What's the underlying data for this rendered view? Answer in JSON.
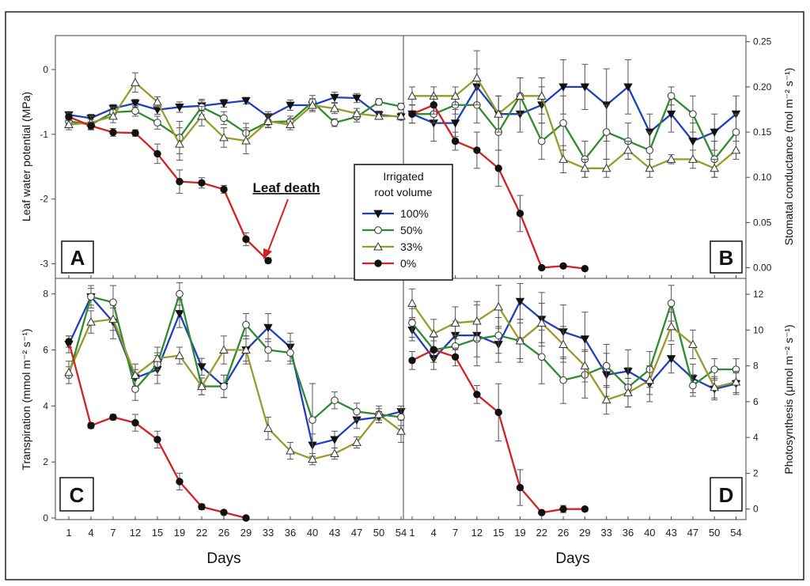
{
  "figure": {
    "x_label": "Days",
    "legend": {
      "title_line1": "Irrigated",
      "title_line2": "root volume",
      "items": [
        "100%",
        "50%",
        "33%",
        "0%"
      ]
    },
    "annotation": "Leaf death",
    "series_colors": {
      "100%": "#1f3fbf",
      "50%": "#2e8b2e",
      "33%": "#9a9a2a",
      "0%": "#d42020"
    }
  },
  "chart_data": [
    {
      "panel": "A",
      "type": "line",
      "ylabel": "Leaf water potential (MPa)",
      "y_axis_side": "left",
      "ylim": [
        -3.2,
        0.5
      ],
      "yticks": [
        0,
        -1,
        -2,
        -3
      ],
      "x_tick_labels": [
        "1",
        "4",
        "7",
        "12",
        "15",
        "19",
        "22",
        "26",
        "29",
        "33",
        "36",
        "40",
        "43",
        "47",
        "50",
        "54"
      ],
      "series": [
        {
          "name": "100%",
          "values": [
            -0.7,
            -0.75,
            -0.6,
            -0.52,
            -0.62,
            -0.58,
            -0.56,
            -0.52,
            -0.48,
            -0.73,
            -0.55,
            -0.55,
            -0.43,
            -0.44,
            -0.7,
            -0.73
          ],
          "errors": [
            0.05,
            0.06,
            0.06,
            0.06,
            0.07,
            0.08,
            0.08,
            0.06,
            0.05,
            0.08,
            0.08,
            0.08,
            0.08,
            0.07,
            0.06,
            0.05
          ]
        },
        {
          "name": "50%",
          "values": [
            -0.8,
            -0.85,
            -0.66,
            -0.64,
            -0.82,
            -1.05,
            -0.58,
            -0.75,
            -0.98,
            -0.81,
            -0.8,
            -0.5,
            -0.82,
            -0.73,
            -0.5,
            -0.57
          ],
          "errors": [
            0.05,
            0.08,
            0.08,
            0.08,
            0.1,
            0.25,
            0.12,
            0.1,
            0.15,
            0.08,
            0.08,
            0.1,
            0.06,
            0.08,
            0.05,
            0.05
          ]
        },
        {
          "name": "33%",
          "values": [
            -0.85,
            -0.82,
            -0.72,
            -0.2,
            -0.5,
            -1.15,
            -0.72,
            -1.05,
            -1.1,
            -0.8,
            -0.85,
            -0.55,
            -0.6,
            -0.68,
            -0.72,
            -0.72
          ],
          "errors": [
            0.08,
            0.1,
            0.1,
            0.15,
            0.08,
            0.25,
            0.15,
            0.15,
            0.2,
            0.1,
            0.08,
            0.1,
            0.08,
            0.08,
            0.05,
            0.05
          ]
        },
        {
          "name": "0%",
          "values": [
            -0.73,
            -0.87,
            -0.97,
            -0.98,
            -1.3,
            -1.73,
            -1.75,
            -1.85,
            -2.62,
            -2.95
          ],
          "errors": [
            0.06,
            0.06,
            0.06,
            0.05,
            0.15,
            0.18,
            0.08,
            0.06,
            0.1,
            0.04
          ]
        }
      ]
    },
    {
      "panel": "B",
      "type": "line",
      "ylabel": "Stomatal conductance (mol m⁻² s⁻¹)",
      "y_axis_side": "right",
      "ylim": [
        -0.01,
        0.255
      ],
      "yticks": [
        0.25,
        0.2,
        0.15,
        0.1,
        0.05,
        0.0
      ],
      "ytick_labels": [
        "0.25",
        "0.20",
        "0.15",
        "0.10",
        "0.05",
        "0.00"
      ],
      "x_tick_labels": [
        "1",
        "4",
        "7",
        "12",
        "15",
        "19",
        "22",
        "26",
        "29",
        "33",
        "36",
        "40",
        "43",
        "47",
        "50",
        "54"
      ],
      "series": [
        {
          "name": "100%",
          "values": [
            0.17,
            0.16,
            0.16,
            0.2,
            0.17,
            0.17,
            0.18,
            0.2,
            0.2,
            0.18,
            0.2,
            0.15,
            0.17,
            0.14,
            0.15,
            0.17
          ],
          "errors": [
            0.01,
            0.02,
            0.015,
            0.02,
            0.02,
            0.02,
            0.02,
            0.03,
            0.025,
            0.04,
            0.03,
            0.02,
            0.02,
            0.02,
            0.02,
            0.02
          ]
        },
        {
          "name": "50%",
          "values": [
            0.17,
            0.17,
            0.18,
            0.18,
            0.15,
            0.19,
            0.14,
            0.16,
            0.12,
            0.15,
            0.14,
            0.13,
            0.19,
            0.17,
            0.12,
            0.15
          ],
          "errors": [
            0.01,
            0.01,
            0.01,
            0.02,
            0.02,
            0.02,
            0.02,
            0.03,
            0.02,
            0.03,
            0.02,
            0.02,
            0.01,
            0.02,
            0.02,
            0.02
          ]
        },
        {
          "name": "33%",
          "values": [
            0.19,
            0.19,
            0.19,
            0.21,
            0.17,
            0.19,
            0.19,
            0.12,
            0.11,
            0.11,
            0.13,
            0.11,
            0.12,
            0.12,
            0.11,
            0.13
          ],
          "errors": [
            0.01,
            0.01,
            0.01,
            0.03,
            0.02,
            0.02,
            0.02,
            0.015,
            0.01,
            0.01,
            0.01,
            0.01,
            0.005,
            0.01,
            0.01,
            0.01
          ]
        },
        {
          "name": "0%",
          "values": [
            0.17,
            0.18,
            0.14,
            0.13,
            0.11,
            0.06,
            0.0,
            0.002,
            -0.001
          ],
          "errors": [
            0.01,
            0.01,
            0.01,
            0.02,
            0.02,
            0.02,
            0.002,
            0.002,
            0.001
          ]
        }
      ]
    },
    {
      "panel": "C",
      "type": "line",
      "ylabel": "Transpiration (mmol m⁻² s⁻¹)",
      "y_axis_side": "left",
      "ylim": [
        0,
        8.5
      ],
      "yticks": [
        0,
        2,
        4,
        6,
        8
      ],
      "x_tick_labels": [
        "1",
        "4",
        "7",
        "12",
        "15",
        "19",
        "22",
        "26",
        "29",
        "33",
        "36",
        "40",
        "43",
        "47",
        "50",
        "54"
      ],
      "series": [
        {
          "name": "100%",
          "values": [
            6.2,
            7.9,
            7.0,
            5.0,
            5.3,
            7.3,
            5.4,
            4.7,
            6.0,
            6.8,
            6.1,
            2.6,
            2.8,
            3.5,
            3.6,
            3.8
          ],
          "errors": [
            0.3,
            0.4,
            0.6,
            0.3,
            0.5,
            0.5,
            0.3,
            0.4,
            0.5,
            0.5,
            0.5,
            0.4,
            0.3,
            0.3,
            0.2,
            0.2
          ]
        },
        {
          "name": "50%",
          "values": [
            5.1,
            7.9,
            7.7,
            4.6,
            5.5,
            8.0,
            4.7,
            4.7,
            6.9,
            6.0,
            5.9,
            3.5,
            4.2,
            3.8,
            3.7,
            3.6
          ],
          "errors": [
            0.3,
            0.3,
            0.6,
            0.4,
            0.4,
            0.4,
            0.3,
            0.4,
            0.4,
            0.4,
            0.4,
            1.3,
            0.3,
            0.3,
            0.3,
            0.3
          ]
        },
        {
          "name": "33%",
          "values": [
            5.2,
            7.0,
            7.1,
            5.1,
            5.7,
            5.8,
            4.7,
            6.0,
            6.0,
            3.2,
            2.4,
            2.1,
            2.3,
            2.7,
            3.7,
            3.1
          ],
          "errors": [
            0.4,
            0.4,
            0.4,
            0.4,
            0.4,
            0.3,
            0.3,
            0.5,
            0.4,
            0.4,
            0.3,
            0.2,
            0.2,
            0.2,
            0.2,
            0.4
          ]
        },
        {
          "name": "0%",
          "values": [
            6.3,
            3.3,
            3.6,
            3.4,
            2.8,
            1.3,
            0.4,
            0.2,
            0.0
          ],
          "errors": [
            0.2,
            0.1,
            0.1,
            0.3,
            0.3,
            0.3,
            0.1,
            0.05,
            0.02
          ]
        }
      ]
    },
    {
      "panel": "D",
      "type": "line",
      "ylabel": "Photosynthesis (μmol m⁻² s⁻¹)",
      "y_axis_side": "right",
      "ylim": [
        -0.5,
        12.8
      ],
      "yticks": [
        12,
        10,
        8,
        6,
        4,
        2,
        0
      ],
      "x_tick_labels": [
        "1",
        "4",
        "7",
        "12",
        "15",
        "19",
        "22",
        "26",
        "29",
        "33",
        "36",
        "40",
        "43",
        "47",
        "50",
        "54"
      ],
      "series": [
        {
          "name": "100%",
          "values": [
            10.0,
            8.4,
            9.7,
            9.7,
            9.2,
            11.6,
            10.6,
            9.9,
            9.5,
            7.5,
            7.7,
            7.0,
            8.4,
            7.3,
            6.7,
            7.0
          ],
          "errors": [
            0.6,
            0.6,
            0.8,
            1.7,
            1.0,
            1.0,
            1.5,
            1.5,
            1.5,
            1.2,
            1.2,
            1.0,
            0.8,
            0.8,
            0.6,
            0.6
          ]
        },
        {
          "name": "50%",
          "values": [
            10.4,
            8.9,
            9.1,
            9.5,
            9.7,
            9.4,
            8.5,
            7.2,
            7.5,
            8.0,
            6.8,
            7.8,
            11.5,
            6.9,
            7.8,
            7.8
          ],
          "errors": [
            0.8,
            0.7,
            0.6,
            1.0,
            1.0,
            1.0,
            1.5,
            1.3,
            1.3,
            1.2,
            1.1,
            1.0,
            1.0,
            0.6,
            0.6,
            0.6
          ]
        },
        {
          "name": "33%",
          "values": [
            11.5,
            9.8,
            10.4,
            10.5,
            11.3,
            9.4,
            10.4,
            9.2,
            8.0,
            6.1,
            6.5,
            7.2,
            10.2,
            9.2,
            6.8,
            7.1
          ],
          "errors": [
            0.8,
            0.8,
            0.9,
            1.1,
            1.2,
            1.2,
            1.1,
            1.0,
            0.9,
            0.8,
            0.8,
            0.8,
            0.8,
            0.8,
            0.6,
            0.6
          ]
        },
        {
          "name": "0%",
          "values": [
            8.3,
            8.9,
            8.5,
            6.4,
            5.4,
            1.2,
            -0.2,
            0.0,
            0.0
          ],
          "errors": [
            0.5,
            0.5,
            0.5,
            0.5,
            1.6,
            1.0,
            0.1,
            0.2,
            0.1
          ]
        }
      ]
    }
  ]
}
